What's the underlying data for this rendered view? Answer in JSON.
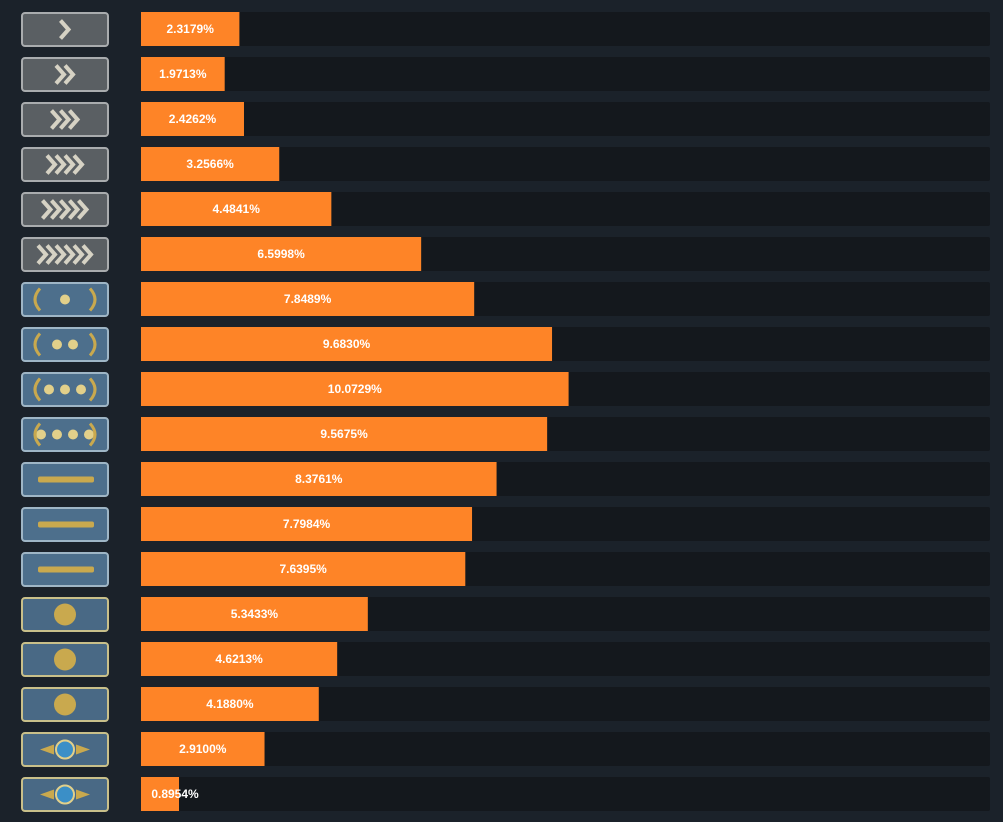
{
  "chart_data": {
    "type": "bar",
    "orientation": "horizontal",
    "categories": [
      null,
      null,
      null,
      null,
      null,
      null,
      null,
      null,
      null,
      null,
      null,
      null,
      null,
      null,
      null,
      null,
      null,
      null
    ],
    "values": [
      2.3179,
      1.9713,
      2.4262,
      3.2566,
      4.4841,
      6.5998,
      7.8489,
      9.683,
      10.0729,
      9.5675,
      8.3761,
      7.7984,
      7.6395,
      5.3433,
      4.6213,
      4.188,
      2.91,
      0.8954
    ],
    "value_labels": [
      "2.3179%",
      "1.9713%",
      "2.4262%",
      "3.2566%",
      "4.4841%",
      "6.5998%",
      "7.8489%",
      "9.6830%",
      "10.0729%",
      "9.5675%",
      "8.3761%",
      "7.7984%",
      "7.6395%",
      "5.3433%",
      "4.6213%",
      "4.1880%",
      "2.9100%",
      "0.8954%"
    ],
    "color": "#fe8427",
    "xlim": [
      0,
      20
    ]
  }
}
